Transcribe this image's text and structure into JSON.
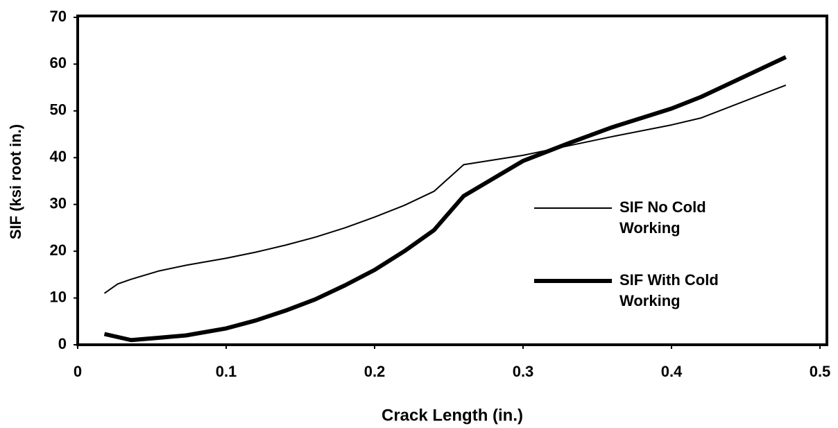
{
  "chart_data": {
    "type": "line",
    "xlabel": "Crack Length (in.)",
    "ylabel": "SIF (ksi root in.)",
    "xlim": [
      0,
      0.5
    ],
    "xticks": [
      0,
      0.1,
      0.2,
      0.3,
      0.4,
      0.5
    ],
    "ylim": [
      0,
      70
    ],
    "yticks": [
      0,
      10,
      20,
      30,
      40,
      50,
      60,
      70
    ],
    "legend": "right",
    "series": [
      {
        "name": "SIF No Cold Working",
        "color": "#000000",
        "width": 2,
        "x": [
          0.018,
          0.027,
          0.036,
          0.055,
          0.073,
          0.1,
          0.12,
          0.14,
          0.16,
          0.18,
          0.2,
          0.22,
          0.24,
          0.26,
          0.3,
          0.33,
          0.36,
          0.4,
          0.42,
          0.477
        ],
        "values": [
          11,
          13,
          14,
          15.8,
          17,
          18.5,
          19.8,
          21.3,
          23,
          25,
          27.3,
          29.8,
          32.8,
          38.5,
          40.5,
          42.5,
          44.5,
          47,
          48.5,
          55.5
        ]
      },
      {
        "name": "SIF With Cold Working",
        "color": "#000000",
        "width": 6,
        "x": [
          0.018,
          0.036,
          0.055,
          0.073,
          0.1,
          0.12,
          0.14,
          0.16,
          0.18,
          0.2,
          0.22,
          0.24,
          0.26,
          0.3,
          0.33,
          0.36,
          0.4,
          0.42,
          0.477
        ],
        "values": [
          2.3,
          1,
          1.5,
          2,
          3.5,
          5.2,
          7.3,
          9.7,
          12.7,
          16,
          20,
          24.5,
          31.8,
          39.3,
          43,
          46.5,
          50.5,
          53,
          61.5
        ]
      }
    ]
  }
}
